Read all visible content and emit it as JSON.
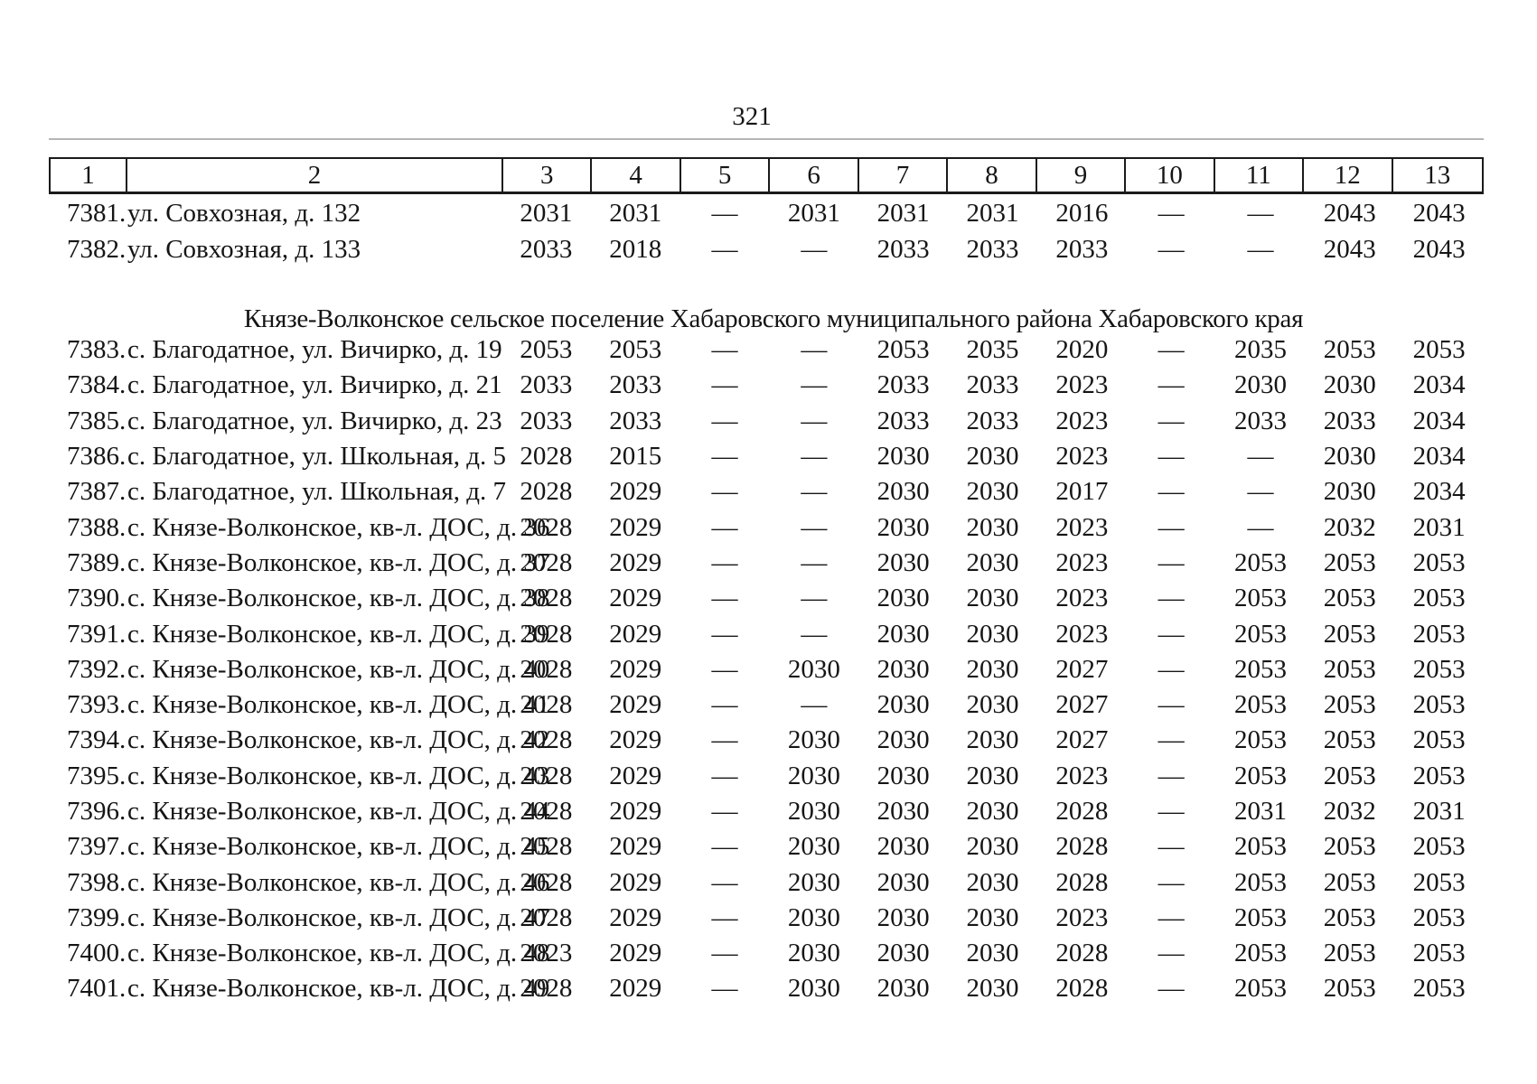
{
  "page_number": "321",
  "table": {
    "column_headers": [
      "1",
      "2",
      "3",
      "4",
      "5",
      "6",
      "7",
      "8",
      "9",
      "10",
      "11",
      "12",
      "13"
    ],
    "rows_before_section": [
      {
        "num": "7381.",
        "address": "ул. Совхозная, д. 132",
        "values": [
          "2031",
          "2031",
          "—",
          "2031",
          "2031",
          "2031",
          "2016",
          "—",
          "—",
          "2043",
          "2043"
        ]
      },
      {
        "num": "7382.",
        "address": "ул. Совхозная, д. 133",
        "values": [
          "2033",
          "2018",
          "—",
          "—",
          "2033",
          "2033",
          "2033",
          "—",
          "—",
          "2043",
          "2043"
        ]
      }
    ],
    "section_title": "Князе-Волконское сельское поселение Хабаровского муниципального района Хабаровского края",
    "rows_after_section": [
      {
        "num": "7383.",
        "address": "с. Благодатное, ул. Вичирко, д. 19",
        "values": [
          "2053",
          "2053",
          "—",
          "—",
          "2053",
          "2035",
          "2020",
          "—",
          "2035",
          "2053",
          "2053"
        ]
      },
      {
        "num": "7384.",
        "address": "с. Благодатное, ул. Вичирко, д. 21",
        "values": [
          "2033",
          "2033",
          "—",
          "—",
          "2033",
          "2033",
          "2023",
          "—",
          "2030",
          "2030",
          "2034"
        ]
      },
      {
        "num": "7385.",
        "address": "с. Благодатное, ул. Вичирко, д. 23",
        "values": [
          "2033",
          "2033",
          "—",
          "—",
          "2033",
          "2033",
          "2023",
          "—",
          "2033",
          "2033",
          "2034"
        ]
      },
      {
        "num": "7386.",
        "address": "с. Благодатное, ул. Школьная, д. 5",
        "values": [
          "2028",
          "2015",
          "—",
          "—",
          "2030",
          "2030",
          "2023",
          "—",
          "—",
          "2030",
          "2034"
        ]
      },
      {
        "num": "7387.",
        "address": "с. Благодатное, ул. Школьная, д. 7",
        "values": [
          "2028",
          "2029",
          "—",
          "—",
          "2030",
          "2030",
          "2017",
          "—",
          "—",
          "2030",
          "2034"
        ]
      },
      {
        "num": "7388.",
        "address": "с. Князе-Волконское, кв-л. ДОС, д. 36",
        "values": [
          "2028",
          "2029",
          "—",
          "—",
          "2030",
          "2030",
          "2023",
          "—",
          "—",
          "2032",
          "2031"
        ]
      },
      {
        "num": "7389.",
        "address": "с. Князе-Волконское, кв-л. ДОС, д. 37",
        "values": [
          "2028",
          "2029",
          "—",
          "—",
          "2030",
          "2030",
          "2023",
          "—",
          "2053",
          "2053",
          "2053"
        ]
      },
      {
        "num": "7390.",
        "address": "с. Князе-Волконское, кв-л. ДОС, д. 38",
        "values": [
          "2028",
          "2029",
          "—",
          "—",
          "2030",
          "2030",
          "2023",
          "—",
          "2053",
          "2053",
          "2053"
        ]
      },
      {
        "num": "7391.",
        "address": "с. Князе-Волконское, кв-л. ДОС, д. 39",
        "values": [
          "2028",
          "2029",
          "—",
          "—",
          "2030",
          "2030",
          "2023",
          "—",
          "2053",
          "2053",
          "2053"
        ]
      },
      {
        "num": "7392.",
        "address": "с. Князе-Волконское, кв-л. ДОС, д. 40",
        "values": [
          "2028",
          "2029",
          "—",
          "2030",
          "2030",
          "2030",
          "2027",
          "—",
          "2053",
          "2053",
          "2053"
        ]
      },
      {
        "num": "7393.",
        "address": "с. Князе-Волконское, кв-л. ДОС, д. 41",
        "values": [
          "2028",
          "2029",
          "—",
          "—",
          "2030",
          "2030",
          "2027",
          "—",
          "2053",
          "2053",
          "2053"
        ]
      },
      {
        "num": "7394.",
        "address": "с. Князе-Волконское, кв-л. ДОС, д. 42",
        "values": [
          "2028",
          "2029",
          "—",
          "2030",
          "2030",
          "2030",
          "2027",
          "—",
          "2053",
          "2053",
          "2053"
        ]
      },
      {
        "num": "7395.",
        "address": "с. Князе-Волконское, кв-л. ДОС, д. 43",
        "values": [
          "2028",
          "2029",
          "—",
          "2030",
          "2030",
          "2030",
          "2023",
          "—",
          "2053",
          "2053",
          "2053"
        ]
      },
      {
        "num": "7396.",
        "address": "с. Князе-Волконское, кв-л. ДОС, д. 44",
        "values": [
          "2028",
          "2029",
          "—",
          "2030",
          "2030",
          "2030",
          "2028",
          "—",
          "2031",
          "2032",
          "2031"
        ]
      },
      {
        "num": "7397.",
        "address": "с. Князе-Волконское, кв-л. ДОС, д. 45",
        "values": [
          "2028",
          "2029",
          "—",
          "2030",
          "2030",
          "2030",
          "2028",
          "—",
          "2053",
          "2053",
          "2053"
        ]
      },
      {
        "num": "7398.",
        "address": "с. Князе-Волконское, кв-л. ДОС, д. 46",
        "values": [
          "2028",
          "2029",
          "—",
          "2030",
          "2030",
          "2030",
          "2028",
          "—",
          "2053",
          "2053",
          "2053"
        ]
      },
      {
        "num": "7399.",
        "address": "с. Князе-Волконское, кв-л. ДОС, д. 47",
        "values": [
          "2028",
          "2029",
          "—",
          "2030",
          "2030",
          "2030",
          "2023",
          "—",
          "2053",
          "2053",
          "2053"
        ]
      },
      {
        "num": "7400.",
        "address": "с. Князе-Волконское, кв-л. ДОС, д. 48",
        "values": [
          "2023",
          "2029",
          "—",
          "2030",
          "2030",
          "2030",
          "2028",
          "—",
          "2053",
          "2053",
          "2053"
        ]
      },
      {
        "num": "7401.",
        "address": "с. Князе-Волконское, кв-л. ДОС, д. 49",
        "values": [
          "2028",
          "2029",
          "—",
          "2030",
          "2030",
          "2030",
          "2028",
          "—",
          "2053",
          "2053",
          "2053"
        ]
      }
    ]
  }
}
